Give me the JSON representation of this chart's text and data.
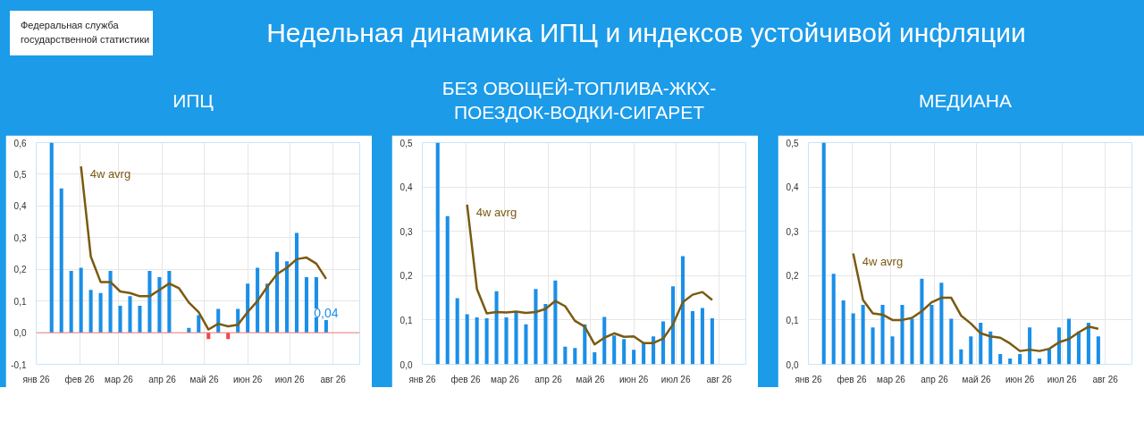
{
  "chart_data": [
    {
      "type": "bar",
      "title": "ИПЦ",
      "x": [
        "2026-01-12",
        "2026-01-19",
        "2026-01-26",
        "2026-02-02",
        "2026-02-09",
        "2026-02-16",
        "2026-02-23",
        "2026-03-02",
        "2026-03-09",
        "2026-03-16",
        "2026-03-23",
        "2026-03-30",
        "2026-04-06",
        "2026-04-13",
        "2026-04-20",
        "2026-04-27",
        "2026-05-04",
        "2026-05-11",
        "2026-05-18",
        "2026-05-25",
        "2026-06-01",
        "2026-06-08",
        "2026-06-15",
        "2026-06-22",
        "2026-06-29",
        "2026-07-06",
        "2026-07-13",
        "2026-07-20",
        "2026-07-27"
      ],
      "annotations": [
        "4w avrg",
        "Федеральная служба государственной статистики",
        "Недельная динамика ИПЦ и индексов устойчивой инфляции"
      ],
      "series": [
        {
          "colors": [
            "#1a8fe8",
            "#1a8fe8",
            "#1a8fe8",
            "#1a8fe8",
            "#1a8fe8",
            "#1a8fe8",
            "#1a8fe8",
            "#1a8fe8",
            "#1a8fe8",
            "#1a8fe8",
            "#1a8fe8",
            "#1a8fe8",
            "#1a8fe8",
            "#1a8fe8",
            "#1a8fe8",
            "#1a8fe8",
            "#f04848",
            "#1a8fe8",
            "#f04848",
            "#1a8fe8",
            "#1a8fe8",
            "#1a8fe8",
            "#1a8fe8",
            "#1a8fe8",
            "#1a8fe8",
            "#1a8fe8",
            "#1a8fe8",
            "#1a8fe8",
            "#1a8fe8"
          ],
          "values": [
            0.6,
            0.455,
            0.195,
            0.205,
            0.135,
            0.125,
            0.195,
            0.085,
            0.115,
            0.085,
            0.195,
            0.175,
            0.195,
            0,
            0.015,
            0.055,
            -0.02,
            0.075,
            -0.02,
            0.075,
            0.155,
            0.205,
            0.155,
            0.255,
            0.225,
            0.315,
            0.175,
            0.175,
            0.04
          ],
          "value_labels": [
            null,
            null,
            null,
            null,
            null,
            null,
            null,
            null,
            null,
            null,
            null,
            null,
            null,
            null,
            null,
            null,
            null,
            null,
            null,
            null,
            null,
            null,
            null,
            null,
            null,
            null,
            null,
            null,
            "0,04"
          ]
        },
        {
          "type": "line",
          "color": "#7a5a10",
          "x": [
            "2026-02-02",
            "2026-02-09",
            "2026-02-16",
            "2026-02-23",
            "2026-03-02",
            "2026-03-09",
            "2026-03-16",
            "2026-03-23",
            "2026-03-30",
            "2026-04-06",
            "2026-04-13",
            "2026-04-20",
            "2026-04-27",
            "2026-05-04",
            "2026-05-11",
            "2026-05-18",
            "2026-05-25",
            "2026-06-01",
            "2026-06-08",
            "2026-06-15",
            "2026-06-22",
            "2026-06-29",
            "2026-07-06",
            "2026-07-13",
            "2026-07-20",
            "2026-07-27"
          ],
          "values": [
            0.525,
            0.24,
            0.16,
            0.16,
            0.13,
            0.125,
            0.115,
            0.115,
            0.135,
            0.155,
            0.14,
            0.095,
            0.065,
            0.01,
            0.028,
            0.02,
            0.025,
            0.065,
            0.1,
            0.145,
            0.185,
            0.205,
            0.232,
            0.237,
            0.218,
            0.17
          ]
        }
      ],
      "ref_lines": [
        {
          "axis": "y",
          "value": 0,
          "color": "#f08080"
        }
      ],
      "xlim": [
        "2026-01-01",
        "2026-08-20"
      ],
      "xticks": [
        {
          "value": "2026-01-01",
          "label": "янв 26"
        },
        {
          "value": "2026-02-01",
          "label": "фев 26"
        },
        {
          "value": "2026-03-01",
          "label": "мар 26"
        },
        {
          "value": "2026-04-01",
          "label": "апр 26"
        },
        {
          "value": "2026-05-01",
          "label": "май 26"
        },
        {
          "value": "2026-06-01",
          "label": "июн 26"
        },
        {
          "value": "2026-07-01",
          "label": "июл 26"
        },
        {
          "value": "2026-08-01",
          "label": "авг 26"
        }
      ],
      "ylim": [
        -0.1,
        0.6
      ],
      "yticks": [
        {
          "value": -0.1,
          "label": "-0,1"
        },
        {
          "value": 0,
          "label": "0,0"
        },
        {
          "value": 0.1,
          "label": "0,1"
        },
        {
          "value": 0.2,
          "label": "0,2"
        },
        {
          "value": 0.3,
          "label": "0,3"
        },
        {
          "value": 0.4,
          "label": "0,4"
        },
        {
          "value": 0.5,
          "label": "0,5"
        },
        {
          "value": 0.6,
          "label": "0,6"
        }
      ],
      "grid": true,
      "marker": "none"
    },
    {
      "type": "bar",
      "title": "БЕЗ ОВОЩЕЙ-ТОПЛИВА-ЖКХ-ПОЕЗДОК-ВОДКИ-СИГАРЕТ",
      "x": [
        "2026-01-12",
        "2026-01-19",
        "2026-01-26",
        "2026-02-02",
        "2026-02-09",
        "2026-02-16",
        "2026-02-23",
        "2026-03-02",
        "2026-03-09",
        "2026-03-16",
        "2026-03-23",
        "2026-03-30",
        "2026-04-06",
        "2026-04-13",
        "2026-04-20",
        "2026-04-27",
        "2026-05-04",
        "2026-05-11",
        "2026-05-18",
        "2026-05-25",
        "2026-06-01",
        "2026-06-08",
        "2026-06-15",
        "2026-06-22",
        "2026-06-29",
        "2026-07-06",
        "2026-07-13",
        "2026-07-20",
        "2026-07-27"
      ],
      "annotations": [
        "4w avrg"
      ],
      "series": [
        {
          "color": "#1a8fe8",
          "values": [
            0.5,
            0.334,
            0.149,
            0.113,
            0.106,
            0.104,
            0.165,
            0.106,
            0.116,
            0.09,
            0.17,
            0.136,
            0.189,
            0.04,
            0.037,
            0.09,
            0.027,
            0.107,
            0.065,
            0.057,
            0.033,
            0.05,
            0.063,
            0.097,
            0.176,
            0.244,
            0.12,
            0.127,
            0.104
          ]
        },
        {
          "type": "line",
          "color": "#7a5a10",
          "x": [
            "2026-02-02",
            "2026-02-09",
            "2026-02-16",
            "2026-02-23",
            "2026-03-02",
            "2026-03-09",
            "2026-03-16",
            "2026-03-23",
            "2026-03-30",
            "2026-04-06",
            "2026-04-13",
            "2026-04-20",
            "2026-04-27",
            "2026-05-04",
            "2026-05-11",
            "2026-05-18",
            "2026-05-25",
            "2026-06-01",
            "2026-06-08",
            "2026-06-15",
            "2026-06-22",
            "2026-06-29",
            "2026-07-06",
            "2026-07-13",
            "2026-07-20",
            "2026-07-27"
          ],
          "values": [
            0.36,
            0.17,
            0.115,
            0.118,
            0.117,
            0.119,
            0.116,
            0.118,
            0.125,
            0.143,
            0.131,
            0.098,
            0.085,
            0.045,
            0.06,
            0.07,
            0.062,
            0.063,
            0.048,
            0.048,
            0.058,
            0.09,
            0.14,
            0.157,
            0.163,
            0.145
          ]
        }
      ],
      "xlim": [
        "2026-01-01",
        "2026-08-20"
      ],
      "xticks": [
        {
          "value": "2026-01-01",
          "label": "янв 26"
        },
        {
          "value": "2026-02-01",
          "label": "фев 26"
        },
        {
          "value": "2026-03-01",
          "label": "мар 26"
        },
        {
          "value": "2026-04-01",
          "label": "апр 26"
        },
        {
          "value": "2026-05-01",
          "label": "май 26"
        },
        {
          "value": "2026-06-01",
          "label": "июн 26"
        },
        {
          "value": "2026-07-01",
          "label": "июл 26"
        },
        {
          "value": "2026-08-01",
          "label": "авг 26"
        }
      ],
      "ylim": [
        0,
        0.5
      ],
      "yticks": [
        {
          "value": 0,
          "label": "0,0"
        },
        {
          "value": 0.1,
          "label": "0,1"
        },
        {
          "value": 0.2,
          "label": "0,2"
        },
        {
          "value": 0.3,
          "label": "0,3"
        },
        {
          "value": 0.4,
          "label": "0,4"
        },
        {
          "value": 0.5,
          "label": "0,5"
        }
      ],
      "grid": true,
      "marker": "none"
    },
    {
      "type": "bar",
      "title": "МЕДИАНА",
      "x": [
        "2026-01-12",
        "2026-01-19",
        "2026-01-26",
        "2026-02-02",
        "2026-02-09",
        "2026-02-16",
        "2026-02-23",
        "2026-03-02",
        "2026-03-09",
        "2026-03-16",
        "2026-03-23",
        "2026-03-30",
        "2026-04-06",
        "2026-04-13",
        "2026-04-20",
        "2026-04-27",
        "2026-05-04",
        "2026-05-11",
        "2026-05-18",
        "2026-05-25",
        "2026-06-01",
        "2026-06-08",
        "2026-06-15",
        "2026-06-22",
        "2026-06-29",
        "2026-07-06",
        "2026-07-13",
        "2026-07-20",
        "2026-07-27"
      ],
      "annotations": [
        "4w avrg"
      ],
      "series": [
        {
          "color": "#1a8fe8",
          "values": [
            0.5,
            0.204,
            0.144,
            0.115,
            0.134,
            0.083,
            0.134,
            0.063,
            0.134,
            0.103,
            0.193,
            0.134,
            0.184,
            0.103,
            0.034,
            0.063,
            0.094,
            0.074,
            0.023,
            0.013,
            0.023,
            0.083,
            0.013,
            0.034,
            0.083,
            0.103,
            0.074,
            0.094,
            0.063
          ]
        },
        {
          "type": "line",
          "color": "#7a5a10",
          "x": [
            "2026-02-02",
            "2026-02-09",
            "2026-02-16",
            "2026-02-23",
            "2026-03-02",
            "2026-03-09",
            "2026-03-16",
            "2026-03-23",
            "2026-03-30",
            "2026-04-06",
            "2026-04-13",
            "2026-04-20",
            "2026-04-27",
            "2026-05-04",
            "2026-05-11",
            "2026-05-18",
            "2026-05-25",
            "2026-06-01",
            "2026-06-08",
            "2026-06-15",
            "2026-06-22",
            "2026-06-29",
            "2026-07-06",
            "2026-07-13",
            "2026-07-20",
            "2026-07-27"
          ],
          "values": [
            0.25,
            0.145,
            0.115,
            0.112,
            0.1,
            0.1,
            0.105,
            0.12,
            0.14,
            0.15,
            0.15,
            0.11,
            0.092,
            0.07,
            0.063,
            0.06,
            0.047,
            0.03,
            0.033,
            0.03,
            0.035,
            0.05,
            0.057,
            0.072,
            0.085,
            0.08
          ]
        }
      ],
      "xlim": [
        "2026-01-01",
        "2026-08-20"
      ],
      "xticks": [
        {
          "value": "2026-01-01",
          "label": "янв 26"
        },
        {
          "value": "2026-02-01",
          "label": "фев 26"
        },
        {
          "value": "2026-03-01",
          "label": "мар 26"
        },
        {
          "value": "2026-04-01",
          "label": "апр 26"
        },
        {
          "value": "2026-05-01",
          "label": "май 26"
        },
        {
          "value": "2026-06-01",
          "label": "июн 26"
        },
        {
          "value": "2026-07-01",
          "label": "июл 26"
        },
        {
          "value": "2026-08-01",
          "label": "авг 26"
        }
      ],
      "ylim": [
        0,
        0.5
      ],
      "yticks": [
        {
          "value": 0,
          "label": "0,0"
        },
        {
          "value": 0.1,
          "label": "0,1"
        },
        {
          "value": 0.2,
          "label": "0,2"
        },
        {
          "value": 0.3,
          "label": "0,3"
        },
        {
          "value": 0.4,
          "label": "0,4"
        },
        {
          "value": 0.5,
          "label": "0,5"
        }
      ],
      "grid": true,
      "marker": "none"
    }
  ]
}
